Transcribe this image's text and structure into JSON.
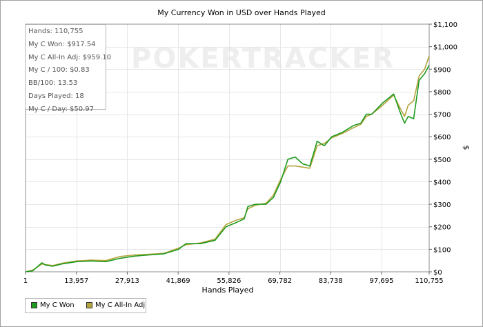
{
  "chart_data": {
    "type": "line",
    "title": "My Currency Won in USD over Hands Played",
    "xlabel": "Hands Played",
    "ylabel": "$",
    "xlim": [
      1,
      110755
    ],
    "ylim": [
      0,
      1100
    ],
    "x_ticks": [
      "1",
      "13,957",
      "27,913",
      "41,869",
      "55,826",
      "69,782",
      "83,738",
      "97,695",
      "110,755"
    ],
    "x_tick_values": [
      1,
      13957,
      27913,
      41869,
      55826,
      69782,
      83738,
      97695,
      110755
    ],
    "y_ticks": [
      "$0",
      "$100",
      "$200",
      "$300",
      "$400",
      "$500",
      "$600",
      "$700",
      "$800",
      "$900",
      "$1,000",
      "$1,100"
    ],
    "y_tick_values": [
      0,
      100,
      200,
      300,
      400,
      500,
      600,
      700,
      800,
      900,
      1000,
      1100
    ],
    "grid": true,
    "legend_position": "bottom-left",
    "watermark": "POKERTRACKER",
    "series": [
      {
        "name": "My C Won",
        "color": "#1e9a1e",
        "points": [
          [
            1,
            0
          ],
          [
            2000,
            5
          ],
          [
            4500,
            40
          ],
          [
            5500,
            30
          ],
          [
            7500,
            25
          ],
          [
            10000,
            35
          ],
          [
            14000,
            45
          ],
          [
            18000,
            48
          ],
          [
            22000,
            45
          ],
          [
            26000,
            60
          ],
          [
            30000,
            70
          ],
          [
            34000,
            75
          ],
          [
            38000,
            80
          ],
          [
            42000,
            100
          ],
          [
            44000,
            125
          ],
          [
            48000,
            125
          ],
          [
            52000,
            140
          ],
          [
            55000,
            200
          ],
          [
            58000,
            220
          ],
          [
            60000,
            235
          ],
          [
            61000,
            290
          ],
          [
            63000,
            300
          ],
          [
            66000,
            300
          ],
          [
            68000,
            330
          ],
          [
            70000,
            400
          ],
          [
            72000,
            500
          ],
          [
            74000,
            510
          ],
          [
            76000,
            480
          ],
          [
            78000,
            470
          ],
          [
            80000,
            580
          ],
          [
            82000,
            560
          ],
          [
            84000,
            600
          ],
          [
            87000,
            620
          ],
          [
            90000,
            650
          ],
          [
            92000,
            660
          ],
          [
            93500,
            700
          ],
          [
            95000,
            700
          ],
          [
            98000,
            750
          ],
          [
            101000,
            790
          ],
          [
            103000,
            700
          ],
          [
            104000,
            660
          ],
          [
            105000,
            690
          ],
          [
            106500,
            680
          ],
          [
            108000,
            850
          ],
          [
            109500,
            880
          ],
          [
            110755,
            918
          ]
        ]
      },
      {
        "name": "My C All-In Adj",
        "color": "#b4a43c",
        "points": [
          [
            1,
            0
          ],
          [
            2000,
            8
          ],
          [
            4500,
            35
          ],
          [
            5500,
            32
          ],
          [
            7500,
            28
          ],
          [
            10000,
            38
          ],
          [
            14000,
            48
          ],
          [
            18000,
            52
          ],
          [
            22000,
            50
          ],
          [
            26000,
            68
          ],
          [
            30000,
            75
          ],
          [
            34000,
            78
          ],
          [
            38000,
            82
          ],
          [
            42000,
            105
          ],
          [
            44000,
            120
          ],
          [
            48000,
            128
          ],
          [
            52000,
            145
          ],
          [
            55000,
            210
          ],
          [
            58000,
            230
          ],
          [
            60000,
            240
          ],
          [
            61000,
            280
          ],
          [
            63000,
            295
          ],
          [
            66000,
            305
          ],
          [
            68000,
            340
          ],
          [
            70000,
            410
          ],
          [
            72000,
            470
          ],
          [
            74000,
            470
          ],
          [
            76000,
            465
          ],
          [
            78000,
            460
          ],
          [
            80000,
            560
          ],
          [
            82000,
            570
          ],
          [
            84000,
            595
          ],
          [
            87000,
            615
          ],
          [
            90000,
            640
          ],
          [
            92000,
            655
          ],
          [
            93500,
            690
          ],
          [
            95000,
            700
          ],
          [
            98000,
            740
          ],
          [
            101000,
            785
          ],
          [
            103000,
            720
          ],
          [
            104000,
            690
          ],
          [
            105000,
            740
          ],
          [
            106500,
            760
          ],
          [
            108000,
            870
          ],
          [
            109500,
            900
          ],
          [
            110755,
            959
          ]
        ]
      }
    ]
  },
  "stats": {
    "hands": "Hands: 110,755",
    "won": "My C Won: $917.54",
    "allin": "My C All-In Adj: $959.10",
    "per100": "My C / 100: $0.83",
    "bb100": "BB/100: 13.53",
    "days": "Days Played: 18",
    "perday": "My C / Day: $50.97"
  },
  "legend": {
    "won_label": "My C Won",
    "won_color": "#1e9a1e",
    "allin_label": "My C All-In Adj",
    "allin_color": "#b4a43c"
  }
}
